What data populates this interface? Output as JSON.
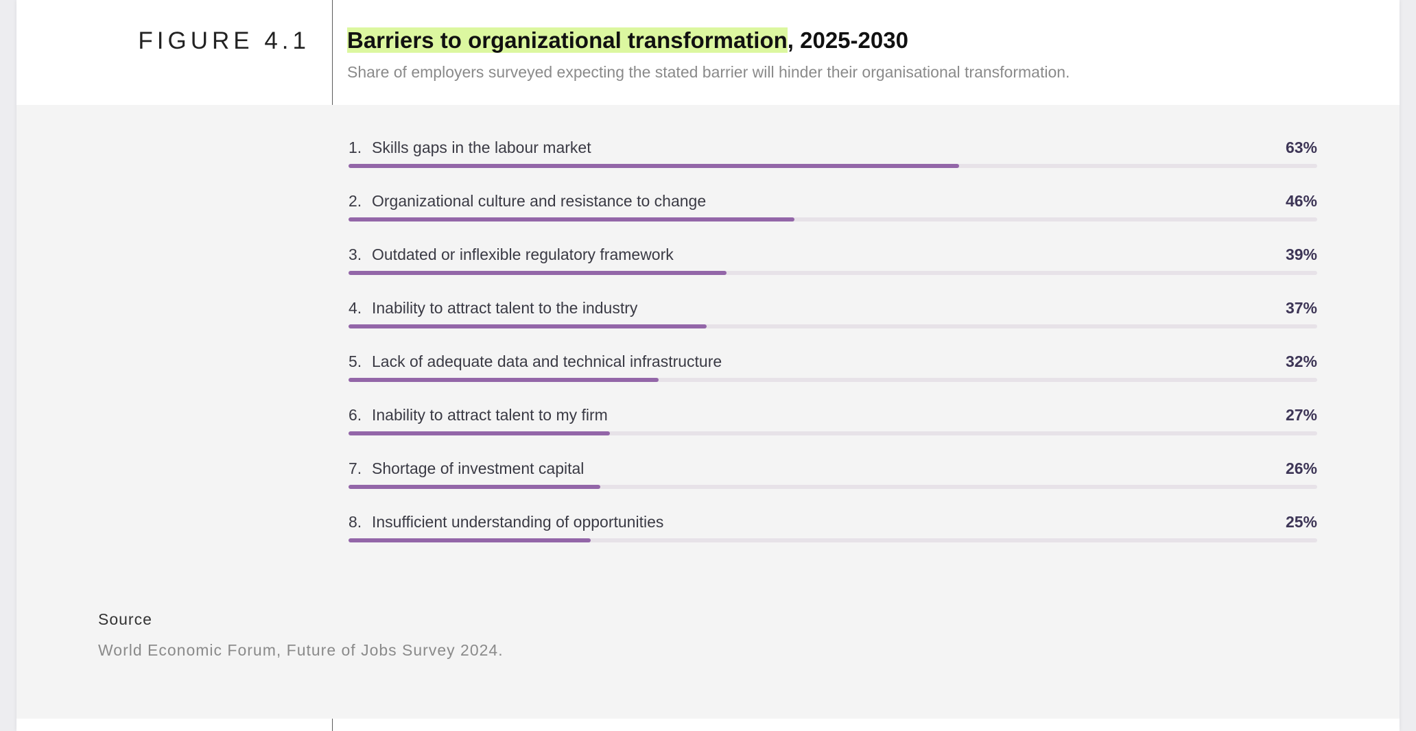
{
  "figure": {
    "label": "FIGURE 4.1",
    "title_highlight": "Barriers to organizational transformation",
    "title_rest": ", 2025-2030",
    "subtitle": "Share of employers surveyed expecting the stated barrier will hinder their organisational transformation."
  },
  "colors": {
    "bar": "#9366a8",
    "track": "#e7e2e8",
    "highlight": "#dcf7a0",
    "panel_background": "#f4f4f4"
  },
  "chart_data": {
    "type": "bar",
    "orientation": "horizontal",
    "title": "Barriers to organizational transformation, 2025-2030",
    "subtitle": "Share of employers surveyed expecting the stated barrier will hinder their organisational transformation.",
    "xlim": [
      0,
      100
    ],
    "grid": false,
    "legend": "none",
    "categories": [
      "Skills gaps in the labour market",
      "Organizational culture and resistance to change",
      "Outdated or inflexible regulatory framework",
      "Inability to attract talent to the industry",
      "Lack of adequate data and technical infrastructure",
      "Inability to attract talent to my firm",
      "Shortage of investment capital",
      "Insufficient understanding of opportunities"
    ],
    "values": [
      63,
      46,
      39,
      37,
      32,
      27,
      26,
      25
    ],
    "value_labels": [
      "63%",
      "46%",
      "39%",
      "37%",
      "32%",
      "27%",
      "26%",
      "25%"
    ],
    "rank_labels": [
      "1.",
      "2.",
      "3.",
      "4.",
      "5.",
      "6.",
      "7.",
      "8."
    ]
  },
  "source": {
    "heading": "Source",
    "text": "World Economic Forum, Future of Jobs Survey 2024."
  }
}
